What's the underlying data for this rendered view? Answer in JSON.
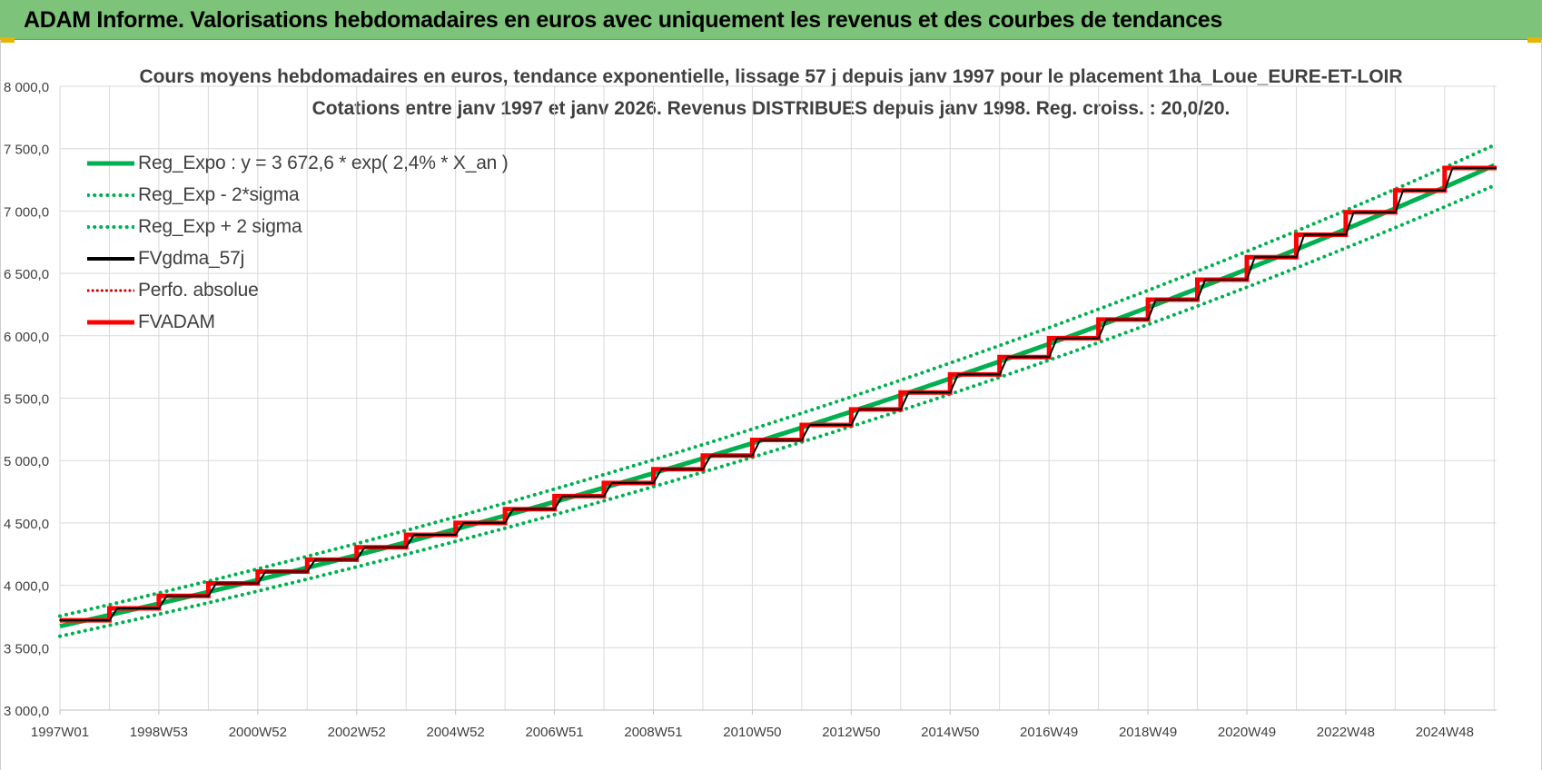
{
  "banner": {
    "title": "ADAM Informe. Valorisations hebdomadaires en euros avec uniquement les revenus et des courbes de tendances"
  },
  "colors": {
    "banner_bg": "#7dc47a",
    "reg_expo": "#00b050",
    "fvgdma": "#000000",
    "fvadam": "#ff0000",
    "perfo": "#c00000"
  },
  "chart_data": {
    "type": "line",
    "title_line1": "Cours moyens hebdomadaires en euros, tendance exponentielle, lissage 57 j depuis janv 1997  pour le placement 1ha_Loue_EURE-ET-LOIR",
    "title_line2": "Cotations entre janv 1997 et janv 2026. Revenus DISTRIBUES depuis janv 1998. Reg. croiss. : 20,0/20.",
    "xlabel": "",
    "ylabel": "",
    "ylim": [
      3000,
      8000
    ],
    "xlim": [
      1997.0,
      2026.05
    ],
    "y_ticks": [
      "3 000,0",
      "3 500,0",
      "4 000,0",
      "4 500,0",
      "5 000,0",
      "5 500,0",
      "6 000,0",
      "6 500,0",
      "7 000,0",
      "7 500,0",
      "8 000,0"
    ],
    "x_ticks": [
      {
        "label": "1997W01",
        "x": 1997.0
      },
      {
        "label": "1998W53",
        "x": 1999.0
      },
      {
        "label": "2000W52",
        "x": 2001.0
      },
      {
        "label": "2002W52",
        "x": 2003.0
      },
      {
        "label": "2004W52",
        "x": 2005.0
      },
      {
        "label": "2006W51",
        "x": 2007.0
      },
      {
        "label": "2008W51",
        "x": 2009.0
      },
      {
        "label": "2010W50",
        "x": 2011.0
      },
      {
        "label": "2012W50",
        "x": 2013.0
      },
      {
        "label": "2014W50",
        "x": 2015.0
      },
      {
        "label": "2016W49",
        "x": 2017.0
      },
      {
        "label": "2018W49",
        "x": 2019.0
      },
      {
        "label": "2020W49",
        "x": 2021.0
      },
      {
        "label": "2022W48",
        "x": 2023.0
      },
      {
        "label": "2024W48",
        "x": 2025.0
      }
    ],
    "grid": true,
    "legend_position": "top-left",
    "trend": {
      "a": 3672.6,
      "rate": 0.024,
      "x0": 1997.0,
      "band_factor_low": 0.978,
      "band_factor_high": 1.022
    },
    "series": [
      {
        "name": "Reg_Expo : y = 3 672,6 * exp( 2,4% *  X_an )",
        "style": "solid-thick",
        "color": "#00b050"
      },
      {
        "name": "Reg_Exp - 2*sigma",
        "style": "dotted",
        "color": "#00b050"
      },
      {
        "name": "Reg_Exp + 2 sigma",
        "style": "dotted",
        "color": "#00b050"
      },
      {
        "name": "FVgdma_57j",
        "style": "solid",
        "color": "#000000"
      },
      {
        "name": "Perfo. absolue",
        "style": "dotted",
        "color": "#c00000"
      },
      {
        "name": "FVADAM",
        "style": "solid-thick",
        "color": "#ff0000"
      }
    ],
    "fvadam_steps": {
      "x": [
        1997.0,
        1998.0,
        1999.0,
        2000.0,
        2001.0,
        2002.0,
        2003.0,
        2004.0,
        2005.0,
        2006.0,
        2007.0,
        2008.0,
        2009.0,
        2010.0,
        2011.0,
        2012.0,
        2013.0,
        2014.0,
        2015.0,
        2016.0,
        2017.0,
        2018.0,
        2019.0,
        2020.0,
        2021.0,
        2022.0,
        2023.0,
        2024.0,
        2025.0
      ],
      "y": [
        3720,
        3815,
        3915,
        4015,
        4110,
        4205,
        4305,
        4405,
        4500,
        4610,
        4715,
        4820,
        4930,
        5040,
        5165,
        5285,
        5410,
        5545,
        5690,
        5830,
        5980,
        6130,
        6290,
        6450,
        6630,
        6810,
        6990,
        7165,
        7345
      ]
    }
  }
}
